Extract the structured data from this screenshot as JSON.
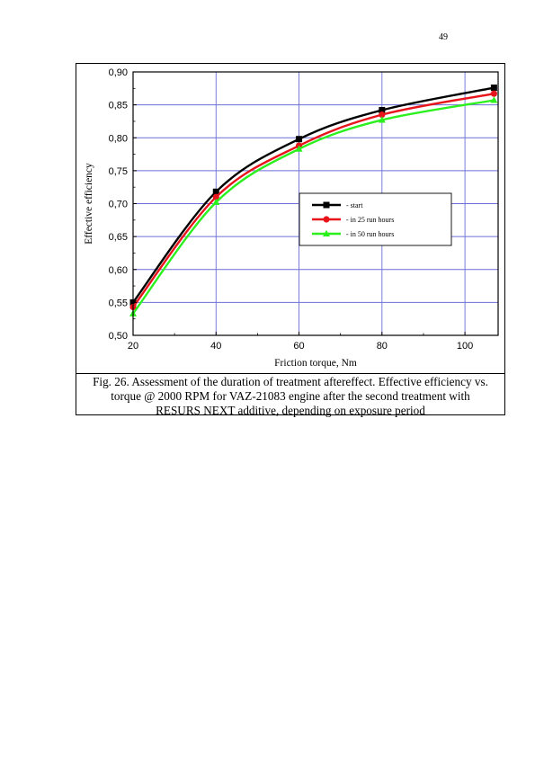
{
  "page": {
    "number": "49"
  },
  "figure": {
    "caption_lines": [
      "Fig. 26. Assessment of the duration of treatment aftereffect. Effective efficiency vs.",
      "torque @ 2000 RPM for VAZ-21083 engine after the second treatment with",
      "RESURS NEXT additive, depending on exposure period"
    ]
  },
  "chart_data": {
    "type": "line",
    "xlabel": "Friction torque, Nm",
    "ylabel": "Effective efficiency",
    "xlim": [
      20,
      108
    ],
    "ylim": [
      0.5,
      0.9
    ],
    "x_ticks": [
      "20",
      "40",
      "60",
      "80",
      "100"
    ],
    "y_ticks": [
      "0,50",
      "0,55",
      "0,60",
      "0,65",
      "0,70",
      "0,75",
      "0,80",
      "0,85",
      "0,90"
    ],
    "grid": true,
    "legend_position": "center-right",
    "x": [
      20,
      40,
      60,
      80,
      107
    ],
    "series": [
      {
        "name": "start",
        "marker": "square",
        "color": "#000000",
        "values": [
          0.55,
          0.718,
          0.798,
          0.842,
          0.876
        ]
      },
      {
        "name": "in 25 run hours",
        "marker": "circle",
        "color": "#e8141c",
        "values": [
          0.543,
          0.71,
          0.788,
          0.835,
          0.867
        ]
      },
      {
        "name": "in 50 run hours",
        "marker": "triangle",
        "color": "#2bf01e",
        "values": [
          0.533,
          0.702,
          0.783,
          0.827,
          0.857
        ]
      }
    ]
  }
}
